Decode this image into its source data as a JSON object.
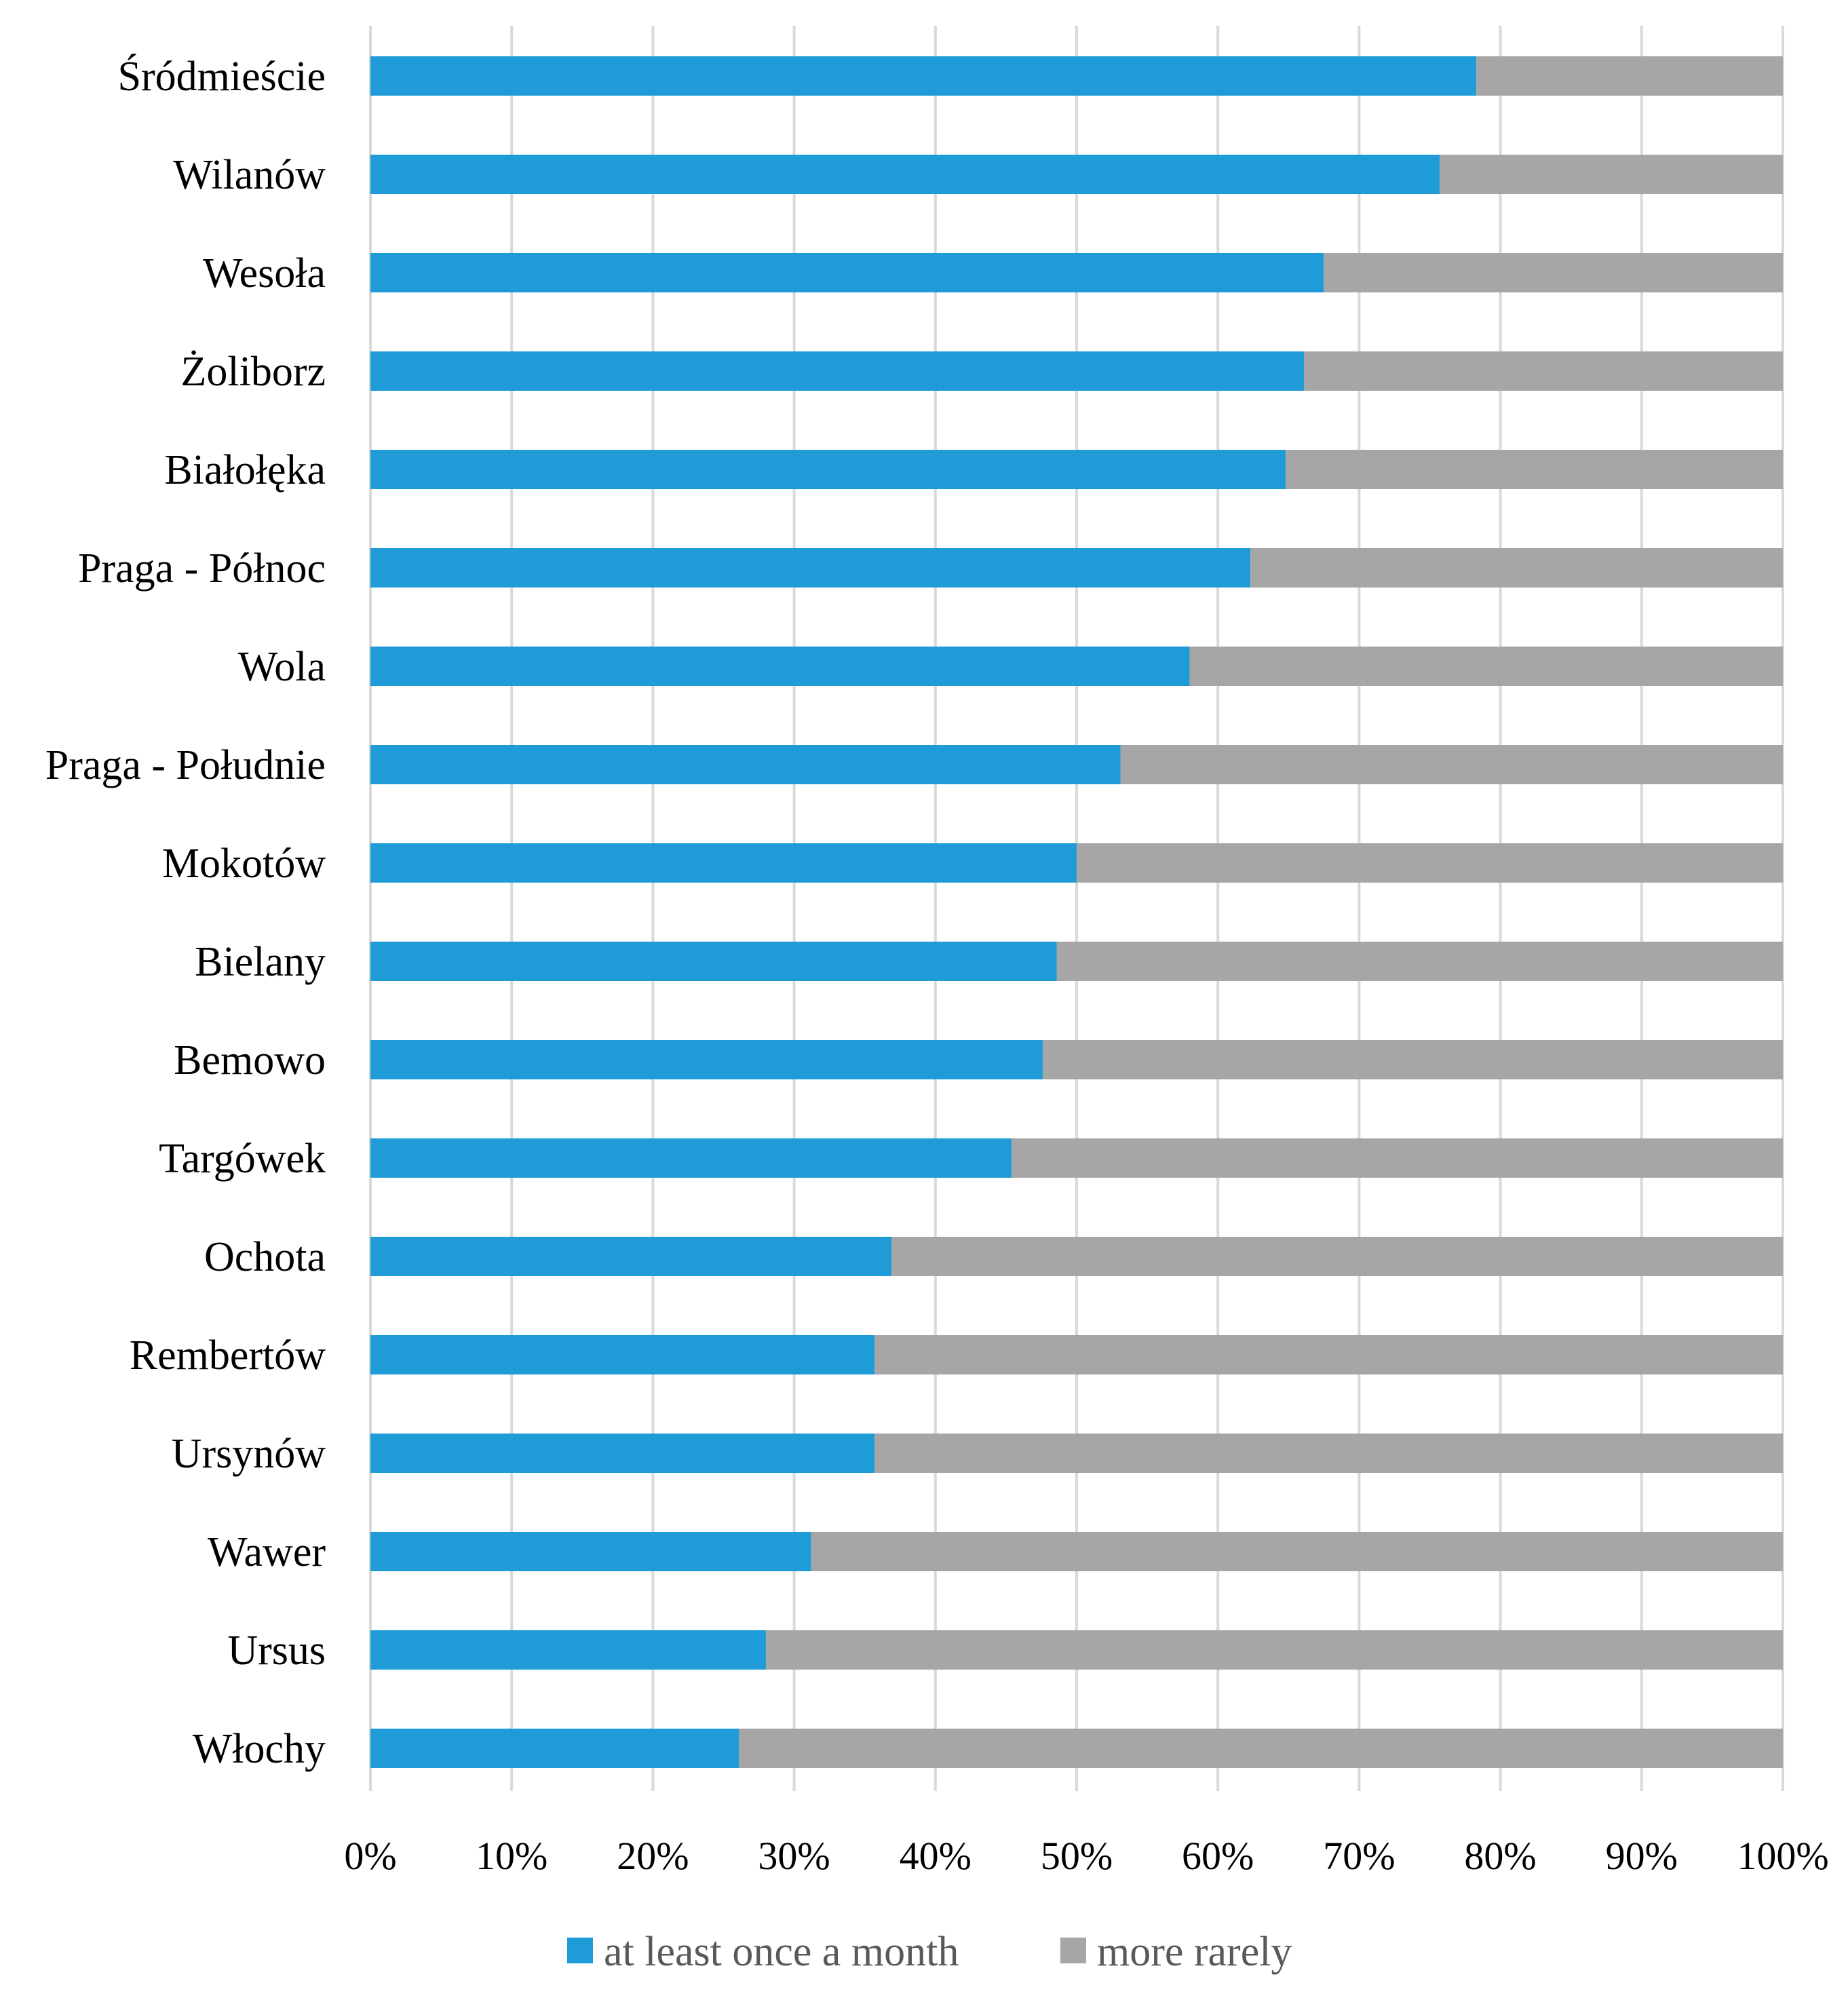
{
  "chart_data": {
    "type": "bar",
    "orientation": "horizontal",
    "stacked": "percent",
    "title": "",
    "xlabel": "",
    "ylabel": "",
    "xlim": [
      0,
      100
    ],
    "grid": true,
    "legend_position": "bottom",
    "categories": [
      "Śródmieście",
      "Wilanów",
      "Wesoła",
      "Żoliborz",
      "Białołęka",
      "Praga - Północ",
      "Wola",
      "Praga - Południe",
      "Mokotów",
      "Bielany",
      "Bemowo",
      "Targówek",
      "Ochota",
      "Rembertów",
      "Ursynów",
      "Wawer",
      "Ursus",
      "Włochy"
    ],
    "x_ticks": [
      "0%",
      "10%",
      "20%",
      "30%",
      "40%",
      "50%",
      "60%",
      "70%",
      "80%",
      "90%",
      "100%"
    ],
    "series": [
      {
        "name": "at least once a month",
        "color": "#1f9cd8",
        "values": [
          78.3,
          75.7,
          67.5,
          66.1,
          64.8,
          62.3,
          58.0,
          53.1,
          50.0,
          48.6,
          47.6,
          45.4,
          36.9,
          35.7,
          35.7,
          31.2,
          28.0,
          26.1
        ]
      },
      {
        "name": "more rarely",
        "color": "#a6a6a6",
        "values": [
          21.7,
          24.3,
          32.5,
          33.9,
          35.2,
          37.7,
          42.0,
          46.9,
          50.0,
          51.4,
          52.4,
          54.6,
          63.1,
          64.3,
          64.3,
          68.8,
          72.0,
          73.9
        ]
      }
    ]
  }
}
